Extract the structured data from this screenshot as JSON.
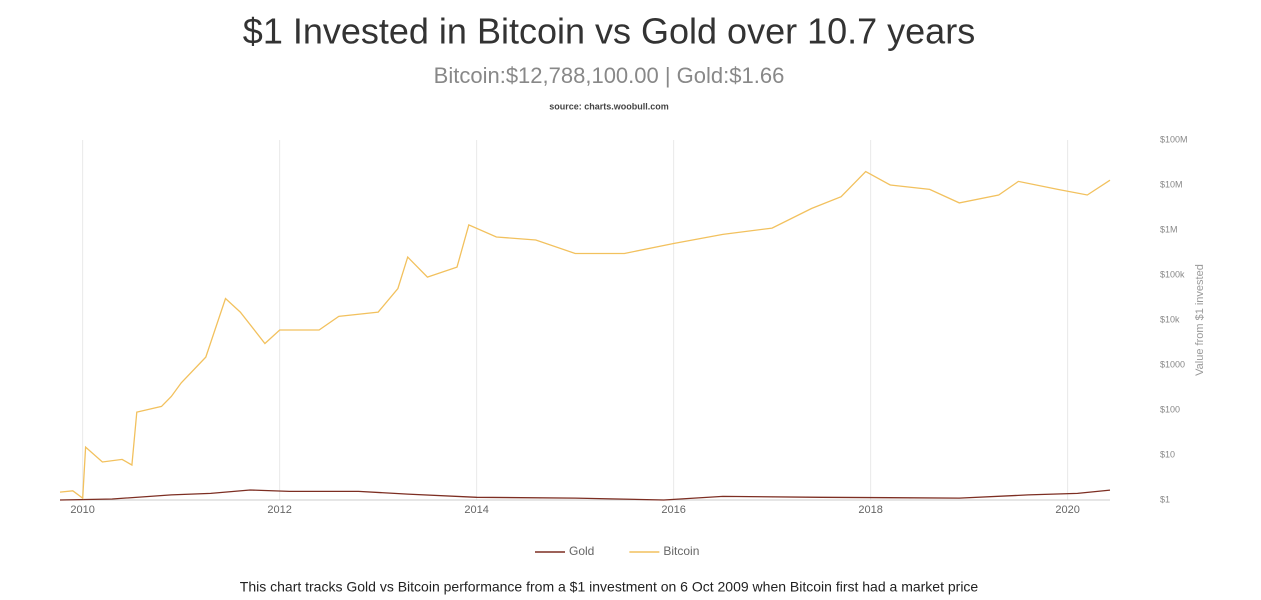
{
  "chart_data": {
    "type": "line",
    "title": "$1 Invested in Bitcoin vs Gold over 10.7 years",
    "subtitle": "Bitcoin:$12,788,100.00 | Gold:$1.66",
    "source": "source: charts.woobull.com",
    "y_axis_label": "Value from $1 invested",
    "footnote": "This chart tracks Gold vs Bitcoin performance from a $1 investment on 6 Oct 2009 when Bitcoin first had a market price",
    "xlim": [
      2009.77,
      2020.43
    ],
    "xticks": [
      2010,
      2012,
      2014,
      2016,
      2018,
      2020
    ],
    "ylim": [
      1,
      100000000
    ],
    "ylog": true,
    "yticks": [
      {
        "value": 1,
        "label": "$1"
      },
      {
        "value": 10,
        "label": "$10"
      },
      {
        "value": 100,
        "label": "$100"
      },
      {
        "value": 1000,
        "label": "$1000"
      },
      {
        "value": 10000,
        "label": "$10k"
      },
      {
        "value": 100000,
        "label": "$100k"
      },
      {
        "value": 1000000,
        "label": "$1M"
      },
      {
        "value": 10000000,
        "label": "$10M"
      },
      {
        "value": 100000000,
        "label": "$100M"
      }
    ],
    "xgrid": true,
    "legend": "bottom",
    "series": [
      {
        "name": "Gold",
        "color": "#7d2e22",
        "x": [
          2009.77,
          2010.3,
          2010.9,
          2011.3,
          2011.7,
          2012.1,
          2012.8,
          2013.3,
          2014.0,
          2015.0,
          2015.9,
          2016.5,
          2017.5,
          2018.9,
          2019.6,
          2020.1,
          2020.43
        ],
        "values": [
          1,
          1.05,
          1.3,
          1.4,
          1.67,
          1.55,
          1.55,
          1.35,
          1.15,
          1.1,
          1.0,
          1.2,
          1.15,
          1.1,
          1.3,
          1.4,
          1.66
        ]
      },
      {
        "name": "Bitcoin",
        "color": "#f2c15e",
        "x": [
          2009.77,
          2009.9,
          2010.0,
          2010.03,
          2010.2,
          2010.4,
          2010.5,
          2010.55,
          2010.8,
          2010.9,
          2011.0,
          2011.25,
          2011.45,
          2011.6,
          2011.85,
          2012.0,
          2012.4,
          2012.6,
          2013.0,
          2013.2,
          2013.3,
          2013.5,
          2013.8,
          2013.92,
          2014.2,
          2014.6,
          2015.0,
          2015.5,
          2016.0,
          2016.5,
          2017.0,
          2017.4,
          2017.7,
          2017.95,
          2018.2,
          2018.6,
          2018.9,
          2019.3,
          2019.5,
          2019.9,
          2020.2,
          2020.43
        ],
        "values": [
          1.5,
          1.6,
          1.1,
          15,
          7,
          8,
          6,
          90,
          120,
          200,
          400,
          1500,
          30000,
          15000,
          3000,
          6000,
          6000,
          12000,
          15000,
          50000,
          250000,
          90000,
          150000,
          1300000,
          700000,
          600000,
          300000,
          300000,
          500000,
          800000,
          1100000,
          3000000,
          5500000,
          20000000,
          10000000,
          8000000,
          4000000,
          6000000,
          12000000,
          8000000,
          6000000,
          12788100
        ]
      }
    ]
  }
}
